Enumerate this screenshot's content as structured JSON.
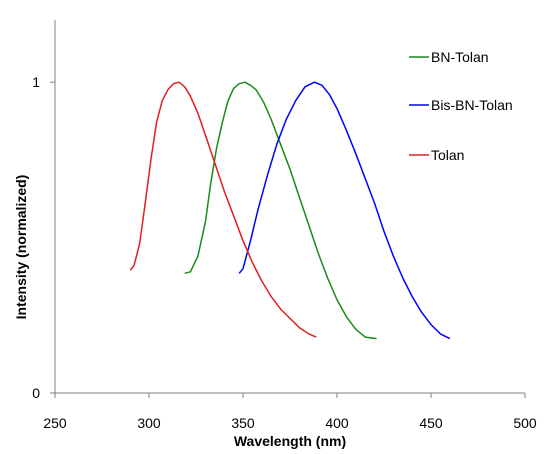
{
  "chart_data": {
    "type": "line",
    "title": "",
    "xlabel": "Wavelength (nm)",
    "ylabel": "Intensity  (normalized)",
    "xlim": [
      250,
      500
    ],
    "ylim": [
      0,
      1.2
    ],
    "x_ticks": [
      250,
      300,
      350,
      400,
      450,
      500
    ],
    "y_ticks": [
      0,
      1
    ],
    "grid": false,
    "legend_position": "top-right",
    "series": [
      {
        "name": "BN-Tolan",
        "color": "#1a8a1a",
        "x": [
          319,
          322,
          326,
          330,
          333,
          336,
          339,
          342,
          345,
          348,
          351,
          354,
          357,
          361,
          365,
          370,
          375,
          380,
          385,
          390,
          395,
          400,
          405,
          410,
          415,
          421
        ],
        "y": [
          0.385,
          0.39,
          0.44,
          0.55,
          0.68,
          0.79,
          0.87,
          0.94,
          0.98,
          0.995,
          1.0,
          0.99,
          0.975,
          0.935,
          0.88,
          0.8,
          0.72,
          0.63,
          0.54,
          0.45,
          0.37,
          0.3,
          0.245,
          0.205,
          0.18,
          0.175
        ]
      },
      {
        "name": "Bis-BN-Tolan",
        "color": "#0000ff",
        "x": [
          348,
          350,
          354,
          358,
          363,
          368,
          373,
          378,
          383,
          388,
          392,
          396,
          400,
          405,
          410,
          415,
          420,
          425,
          430,
          435,
          440,
          445,
          450,
          455,
          460
        ],
        "y": [
          0.385,
          0.4,
          0.49,
          0.59,
          0.7,
          0.8,
          0.88,
          0.94,
          0.985,
          1.0,
          0.99,
          0.96,
          0.915,
          0.845,
          0.77,
          0.69,
          0.61,
          0.52,
          0.44,
          0.37,
          0.31,
          0.26,
          0.22,
          0.19,
          0.175
        ]
      },
      {
        "name": "Tolan",
        "color": "#e02020",
        "x": [
          290,
          292,
          295,
          298,
          301,
          304,
          307,
          310,
          313,
          316,
          319,
          322,
          326,
          330,
          335,
          340,
          345,
          350,
          355,
          360,
          365,
          370,
          375,
          380,
          385,
          389
        ],
        "y": [
          0.395,
          0.41,
          0.48,
          0.61,
          0.75,
          0.87,
          0.94,
          0.975,
          0.995,
          1.0,
          0.985,
          0.955,
          0.9,
          0.83,
          0.74,
          0.65,
          0.57,
          0.49,
          0.42,
          0.36,
          0.31,
          0.27,
          0.24,
          0.21,
          0.19,
          0.18
        ]
      }
    ]
  }
}
